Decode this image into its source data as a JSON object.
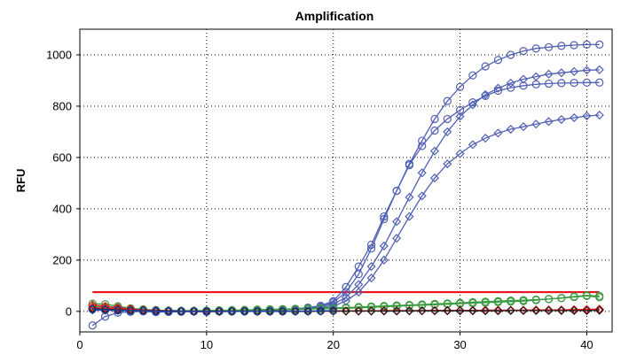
{
  "chart_data": {
    "type": "line",
    "title": "Amplification",
    "xlabel": "",
    "ylabel": "RFU",
    "xlim": [
      0,
      42
    ],
    "ylim": [
      -80,
      1100
    ],
    "xticks": [
      0,
      10,
      20,
      30,
      40
    ],
    "yticks": [
      0,
      200,
      400,
      600,
      800,
      1000
    ],
    "xtick_labels": [
      "0",
      "10",
      "20",
      "30",
      "40"
    ],
    "ytick_labels": [
      "0",
      "200",
      "400",
      "600",
      "800",
      "1000"
    ],
    "grid": true,
    "threshold": {
      "value": 75,
      "color": "#e8161b"
    },
    "series": [
      {
        "marker": "circle",
        "color": "#4f5fb3",
        "x": [
          1,
          2,
          3,
          4,
          5,
          6,
          7,
          8,
          9,
          10,
          11,
          12,
          13,
          14,
          15,
          16,
          17,
          18,
          19,
          20,
          21,
          22,
          23,
          24,
          25,
          26,
          27,
          28,
          29,
          30,
          31,
          32,
          33,
          34,
          35,
          36,
          37,
          38,
          39,
          40,
          41
        ],
        "y": [
          -55,
          -20,
          -5,
          -2,
          0,
          -3,
          -2,
          -1,
          0,
          -2,
          0,
          0,
          1,
          2,
          3,
          5,
          8,
          12,
          20,
          35,
          75,
          145,
          245,
          360,
          470,
          575,
          665,
          750,
          820,
          875,
          920,
          955,
          980,
          1000,
          1015,
          1025,
          1030,
          1035,
          1038,
          1040,
          1040
        ]
      },
      {
        "marker": "circle",
        "color": "#4f5fb3",
        "x": [
          1,
          2,
          3,
          4,
          5,
          6,
          7,
          8,
          9,
          10,
          11,
          12,
          13,
          14,
          15,
          16,
          17,
          18,
          19,
          20,
          21,
          22,
          23,
          24,
          25,
          26,
          27,
          28,
          29,
          30,
          31,
          32,
          33,
          34,
          35,
          36,
          37,
          38,
          39,
          40,
          41
        ],
        "y": [
          10,
          8,
          5,
          3,
          2,
          0,
          -2,
          -1,
          0,
          1,
          2,
          3,
          4,
          5,
          6,
          8,
          10,
          15,
          22,
          40,
          95,
          175,
          260,
          370,
          470,
          570,
          645,
          705,
          750,
          785,
          815,
          840,
          860,
          872,
          880,
          885,
          888,
          890,
          891,
          892,
          892
        ]
      },
      {
        "marker": "diamond",
        "color": "#4f5fb3",
        "x": [
          1,
          2,
          3,
          4,
          5,
          6,
          7,
          8,
          9,
          10,
          11,
          12,
          13,
          14,
          15,
          16,
          17,
          18,
          19,
          20,
          21,
          22,
          23,
          24,
          25,
          26,
          27,
          28,
          29,
          30,
          31,
          32,
          33,
          34,
          35,
          36,
          37,
          38,
          39,
          40,
          41
        ],
        "y": [
          5,
          4,
          3,
          2,
          2,
          1,
          0,
          0,
          1,
          1,
          2,
          3,
          4,
          5,
          6,
          7,
          9,
          12,
          18,
          28,
          55,
          105,
          175,
          255,
          350,
          445,
          540,
          625,
          700,
          760,
          805,
          845,
          870,
          890,
          905,
          915,
          925,
          930,
          935,
          940,
          942
        ]
      },
      {
        "marker": "diamond",
        "color": "#4f5fb3",
        "x": [
          1,
          2,
          3,
          4,
          5,
          6,
          7,
          8,
          9,
          10,
          11,
          12,
          13,
          14,
          15,
          16,
          17,
          18,
          19,
          20,
          21,
          22,
          23,
          24,
          25,
          26,
          27,
          28,
          29,
          30,
          31,
          32,
          33,
          34,
          35,
          36,
          37,
          38,
          39,
          40,
          41
        ],
        "y": [
          15,
          12,
          10,
          8,
          6,
          5,
          4,
          3,
          3,
          3,
          3,
          4,
          4,
          5,
          5,
          6,
          8,
          10,
          14,
          20,
          40,
          75,
          130,
          200,
          285,
          370,
          450,
          520,
          575,
          615,
          650,
          675,
          695,
          710,
          720,
          730,
          740,
          748,
          755,
          762,
          765
        ]
      },
      {
        "marker": "circle",
        "color": "#3a9a3f",
        "x": [
          1,
          2,
          3,
          4,
          5,
          6,
          7,
          8,
          9,
          10,
          11,
          12,
          13,
          14,
          15,
          16,
          17,
          18,
          19,
          20,
          21,
          22,
          23,
          24,
          25,
          26,
          27,
          28,
          29,
          30,
          31,
          32,
          33,
          34,
          35,
          36,
          37,
          38,
          39,
          40,
          41
        ],
        "y": [
          30,
          28,
          20,
          12,
          8,
          5,
          3,
          2,
          2,
          3,
          4,
          5,
          6,
          7,
          8,
          9,
          10,
          11,
          12,
          13,
          15,
          17,
          19,
          21,
          23,
          25,
          27,
          29,
          31,
          33,
          36,
          38,
          40,
          42,
          44,
          46,
          48,
          52,
          56,
          60,
          55
        ]
      },
      {
        "marker": "circle",
        "color": "#3a9a3f",
        "x": [
          1,
          2,
          3,
          4,
          5,
          6,
          7,
          8,
          9,
          10,
          11,
          12,
          13,
          14,
          15,
          16,
          17,
          18,
          19,
          20,
          21,
          22,
          23,
          24,
          25,
          26,
          27,
          28,
          29,
          30,
          31,
          32,
          33,
          34,
          35,
          36,
          37,
          38,
          39,
          40,
          41
        ],
        "y": [
          20,
          18,
          14,
          10,
          6,
          4,
          3,
          2,
          2,
          2,
          3,
          3,
          4,
          5,
          6,
          7,
          8,
          9,
          10,
          11,
          12,
          14,
          16,
          18,
          20,
          22,
          24,
          26,
          28,
          30,
          32,
          34,
          36,
          38,
          40,
          44,
          48,
          52,
          58,
          62,
          60
        ]
      },
      {
        "marker": "diamond",
        "color": "#e8161b",
        "x": [
          1,
          2,
          3,
          4,
          5,
          6,
          7,
          8,
          9,
          10,
          11,
          12,
          13,
          14,
          15,
          16,
          17,
          18,
          19,
          20,
          21,
          22,
          23,
          24,
          25,
          26,
          27,
          28,
          29,
          30,
          31,
          32,
          33,
          34,
          35,
          36,
          37,
          38,
          39,
          40,
          41
        ],
        "y": [
          25,
          20,
          15,
          10,
          6,
          4,
          2,
          1,
          0,
          0,
          0,
          0,
          0,
          0,
          1,
          1,
          1,
          1,
          1,
          2,
          2,
          2,
          2,
          3,
          3,
          3,
          3,
          4,
          4,
          4,
          4,
          5,
          5,
          5,
          5,
          6,
          6,
          6,
          7,
          8,
          9
        ]
      },
      {
        "marker": "diamond",
        "color": "#e8161b",
        "x": [
          1,
          2,
          3,
          4,
          5,
          6,
          7,
          8,
          9,
          10,
          11,
          12,
          13,
          14,
          15,
          16,
          17,
          18,
          19,
          20,
          21,
          22,
          23,
          24,
          25,
          26,
          27,
          28,
          29,
          30,
          31,
          32,
          33,
          34,
          35,
          36,
          37,
          38,
          39,
          40,
          41
        ],
        "y": [
          15,
          12,
          9,
          6,
          4,
          2,
          1,
          0,
          -1,
          -1,
          -1,
          0,
          0,
          0,
          0,
          0,
          1,
          1,
          1,
          1,
          1,
          2,
          2,
          2,
          2,
          2,
          3,
          3,
          3,
          3,
          3,
          4,
          4,
          4,
          4,
          5,
          5,
          5,
          6,
          7,
          8
        ]
      },
      {
        "marker": "diamond",
        "color": "#1f1f1f",
        "x": [
          1,
          2,
          3,
          4,
          5,
          6,
          7,
          8,
          9,
          10,
          11,
          12,
          13,
          14,
          15,
          16,
          17,
          18,
          19,
          20,
          21,
          22,
          23,
          24,
          25,
          26,
          27,
          28,
          29,
          30,
          31,
          32,
          33,
          34,
          35,
          36,
          37,
          38,
          39,
          40,
          41
        ],
        "y": [
          10,
          8,
          6,
          4,
          3,
          2,
          1,
          0,
          0,
          0,
          0,
          0,
          0,
          0,
          0,
          0,
          0,
          0,
          1,
          1,
          1,
          1,
          1,
          1,
          1,
          2,
          2,
          2,
          2,
          2,
          2,
          2,
          2,
          3,
          3,
          3,
          3,
          3,
          3,
          3,
          4
        ]
      },
      {
        "marker": "circle",
        "color": "#1b3f9e",
        "x": [
          1,
          2,
          3,
          4,
          5,
          6,
          7,
          8,
          9,
          10,
          11,
          12,
          13,
          14,
          15,
          16,
          17,
          18,
          19,
          20
        ],
        "y": [
          8,
          6,
          4,
          3,
          2,
          1,
          0,
          0,
          0,
          0,
          0,
          0,
          0,
          0,
          0,
          0,
          1,
          1,
          2,
          3
        ]
      }
    ]
  }
}
